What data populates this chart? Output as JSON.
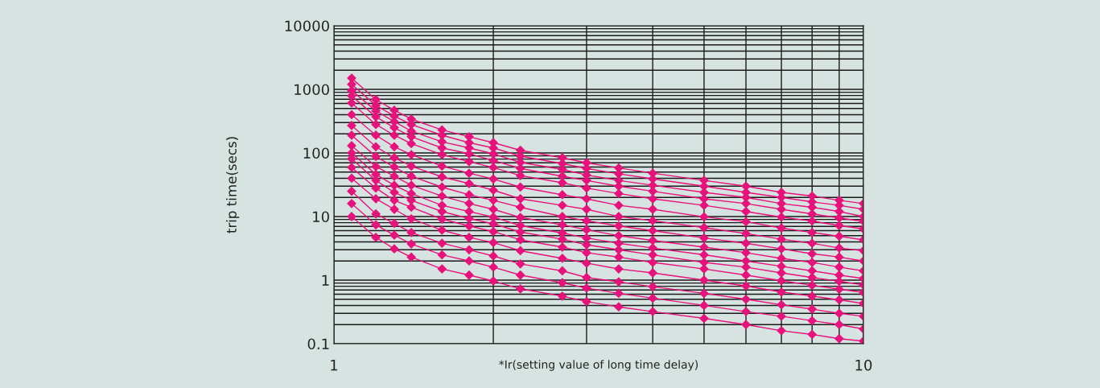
{
  "chart_data": {
    "type": "line",
    "xlabel": "*Ir(setting value of long time delay)",
    "ylabel": "trip time(secs)",
    "log": "xy",
    "grid": true,
    "marker": "diamond",
    "line_style": "solid",
    "xlim": [
      1,
      10
    ],
    "ylim": [
      0.1,
      10000
    ],
    "xticks": [
      1,
      {
        "value": 2,
        "label": null
      },
      {
        "value": 3,
        "label": null
      },
      {
        "value": 4,
        "label": null
      },
      {
        "value": 5,
        "label": null
      },
      {
        "value": 6,
        "label": null
      },
      {
        "value": 7,
        "label": null
      },
      {
        "value": 8,
        "label": null
      },
      {
        "value": 9,
        "label": null
      },
      10
    ],
    "yticks": [
      0.1,
      {
        "value": 0.2,
        "label": null
      },
      {
        "value": 0.3,
        "label": null
      },
      {
        "value": 0.4,
        "label": null
      },
      {
        "value": 0.5,
        "label": null
      },
      {
        "value": 0.6,
        "label": null
      },
      {
        "value": 0.7,
        "label": null
      },
      {
        "value": 0.8,
        "label": null
      },
      {
        "value": 0.9,
        "label": null
      },
      1,
      {
        "value": 2,
        "label": null
      },
      {
        "value": 3,
        "label": null
      },
      {
        "value": 4,
        "label": null
      },
      {
        "value": 5,
        "label": null
      },
      {
        "value": 6,
        "label": null
      },
      {
        "value": 7,
        "label": null
      },
      {
        "value": 8,
        "label": null
      },
      {
        "value": 9,
        "label": null
      },
      10,
      {
        "value": 20,
        "label": null
      },
      {
        "value": 30,
        "label": null
      },
      {
        "value": 40,
        "label": null
      },
      {
        "value": 50,
        "label": null
      },
      {
        "value": 60,
        "label": null
      },
      {
        "value": 70,
        "label": null
      },
      {
        "value": 80,
        "label": null
      },
      {
        "value": 90,
        "label": null
      },
      100,
      {
        "value": 200,
        "label": null
      },
      {
        "value": 300,
        "label": null
      },
      {
        "value": 400,
        "label": null
      },
      {
        "value": 500,
        "label": null
      },
      {
        "value": 600,
        "label": null
      },
      {
        "value": 700,
        "label": null
      },
      {
        "value": 800,
        "label": null
      },
      {
        "value": 900,
        "label": null
      },
      1000,
      {
        "value": 2000,
        "label": null
      },
      {
        "value": 3000,
        "label": null
      },
      {
        "value": 4000,
        "label": null
      },
      {
        "value": 5000,
        "label": null
      },
      {
        "value": 6000,
        "label": null
      },
      {
        "value": 7000,
        "label": null
      },
      {
        "value": 8000,
        "label": null
      },
      {
        "value": 9000,
        "label": null
      },
      10000
    ],
    "x": [
      1.08,
      1.2,
      1.3,
      1.4,
      1.6,
      1.8,
      2,
      2.25,
      2.7,
      3,
      3.45,
      4,
      5,
      6,
      7,
      8,
      9,
      10
    ],
    "series": [
      {
        "color": "#e8127c",
        "values": [
          1500,
          690,
          470,
          340,
          230,
          180,
          145,
          110,
          84,
          70,
          58,
          48,
          37,
          30,
          24,
          21,
          18,
          16
        ]
      },
      {
        "color": "#e8127c",
        "values": [
          1200,
          560,
          380,
          280,
          190,
          145,
          120,
          89,
          68,
          57,
          47,
          39,
          30,
          24,
          20,
          17,
          15,
          13
        ]
      },
      {
        "color": "#e8127c",
        "values": [
          960,
          460,
          310,
          220,
          150,
          120,
          97,
          71,
          55,
          45,
          37,
          31,
          24,
          20,
          16,
          14,
          12,
          10
        ]
      },
      {
        "color": "#e8127c",
        "values": [
          790,
          370,
          250,
          180,
          120,
          97,
          76,
          57,
          43,
          37,
          30,
          25,
          19,
          16,
          13,
          11,
          9.5,
          8.4
        ]
      },
      {
        "color": "#e8127c",
        "values": [
          610,
          280,
          190,
          140,
          94,
          73,
          59,
          44,
          34,
          28,
          23,
          19,
          15,
          12,
          9.8,
          8.5,
          7.2,
          6.4
        ]
      },
      {
        "color": "#e8127c",
        "values": [
          400,
          190,
          125,
          94,
          62,
          48,
          39,
          29,
          22,
          19,
          15,
          13,
          9.9,
          8.3,
          6.6,
          5.6,
          4.9,
          4.3
        ]
      },
      {
        "color": "#e8127c",
        "values": [
          270,
          125,
          84,
          62,
          42,
          33,
          26,
          19,
          15,
          13,
          10,
          8.6,
          6.7,
          5.4,
          4.4,
          3.8,
          3.2,
          2.9
        ]
      },
      {
        "color": "#e8127c",
        "values": [
          190,
          88,
          60,
          43,
          29,
          22,
          18,
          14,
          10,
          8.6,
          7.1,
          6.0,
          4.6,
          3.8,
          3.1,
          2.6,
          2.3,
          2.0
        ]
      },
      {
        "color": "#e8127c",
        "values": [
          130,
          61,
          43,
          31,
          21,
          16,
          13,
          9.7,
          7.4,
          6.2,
          5.0,
          4.2,
          3.3,
          2.7,
          2.2,
          1.9,
          1.6,
          1.4
        ]
      },
      {
        "color": "#e8127c",
        "values": [
          100,
          46,
          31,
          23,
          15,
          12,
          9.8,
          7.2,
          5.5,
          4.6,
          3.8,
          3.2,
          2.5,
          2.0,
          1.65,
          1.4,
          1.2,
          1.06
        ]
      },
      {
        "color": "#e8127c",
        "values": [
          81,
          37,
          24,
          18,
          12,
          9.3,
          7.7,
          5.7,
          4.4,
          3.6,
          3.0,
          2.5,
          1.9,
          1.6,
          1.3,
          1.1,
          0.96,
          0.84
        ]
      },
      {
        "color": "#e8127c",
        "values": [
          59,
          28,
          18,
          14,
          9.1,
          7.1,
          5.8,
          4.3,
          3.3,
          2.7,
          2.3,
          1.9,
          1.5,
          1.2,
          0.98,
          0.83,
          0.72,
          0.64
        ]
      },
      {
        "color": "#e8127c",
        "values": [
          40,
          19,
          13,
          9.2,
          6.1,
          4.7,
          3.9,
          2.9,
          2.2,
          1.85,
          1.5,
          1.3,
          1.0,
          0.81,
          0.65,
          0.56,
          0.49,
          0.43
        ]
      },
      {
        "color": "#e8127c",
        "values": [
          25,
          11,
          7.8,
          5.6,
          3.8,
          3.0,
          2.4,
          1.8,
          1.4,
          1.1,
          0.94,
          0.79,
          0.62,
          0.5,
          0.41,
          0.35,
          0.3,
          0.27
        ]
      },
      {
        "color": "#e8127c",
        "values": [
          16,
          7.4,
          5.1,
          3.7,
          2.5,
          2.0,
          1.6,
          1.2,
          0.91,
          0.75,
          0.62,
          0.52,
          0.4,
          0.32,
          0.27,
          0.23,
          0.2,
          0.17
        ]
      },
      {
        "color": "#e8127c",
        "values": [
          10,
          4.7,
          3.1,
          2.3,
          1.5,
          1.2,
          0.97,
          0.73,
          0.56,
          0.46,
          0.38,
          0.32,
          0.25,
          0.2,
          0.16,
          0.14,
          0.12,
          0.11
        ]
      }
    ]
  }
}
